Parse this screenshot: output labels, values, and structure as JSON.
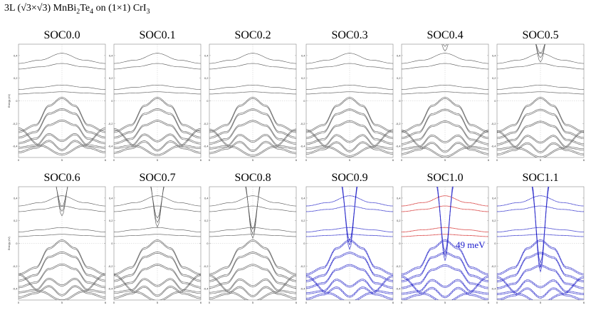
{
  "figure": {
    "title_prefix": "3L (√3×√3) MnBi",
    "title_sub1": "2",
    "title_mid": "Te",
    "title_sub2": "4",
    "title_suffix": " on (1×1) CrI",
    "title_sub3": "3"
  },
  "colors": {
    "plain_band": "#555555",
    "soc_band": "#2323c8",
    "highlight_band": "#d22020",
    "frame": "#888888",
    "annotation": "#1a1acc"
  },
  "chart_data": {
    "type": "line",
    "ylabel": "Energy (eV)",
    "ylim": [
      -0.5,
      0.5
    ],
    "xlim": [
      0,
      1
    ],
    "x_ticks": [
      "0",
      "5",
      "6"
    ],
    "y_ticks": [
      {
        "value": 0.4,
        "label": "0,4"
      },
      {
        "value": 0.2,
        "label": "0,2"
      },
      {
        "value": 0,
        "label": "0"
      },
      {
        "value": -0.2,
        "label": "-0,2"
      },
      {
        "value": -0.4,
        "label": "-0,4"
      }
    ],
    "panels": [
      {
        "title": "SOC0.0",
        "soc": 0.0,
        "style": "plain"
      },
      {
        "title": "SOC0.1",
        "soc": 0.1,
        "style": "plain"
      },
      {
        "title": "SOC0.2",
        "soc": 0.2,
        "style": "plain"
      },
      {
        "title": "SOC0.3",
        "soc": 0.3,
        "style": "plain"
      },
      {
        "title": "SOC0.4",
        "soc": 0.4,
        "style": "plain"
      },
      {
        "title": "SOC0.5",
        "soc": 0.5,
        "style": "plain"
      },
      {
        "title": "SOC0.6",
        "soc": 0.6,
        "style": "plain"
      },
      {
        "title": "SOC0.7",
        "soc": 0.7,
        "style": "plain"
      },
      {
        "title": "SOC0.8",
        "soc": 0.8,
        "style": "plain"
      },
      {
        "title": "SOC0.9",
        "soc": 0.9,
        "style": "soc"
      },
      {
        "title": "SOC1.0",
        "soc": 1.0,
        "style": "soc_highlight",
        "annotation": "49 meV"
      },
      {
        "title": "SOC1.1",
        "soc": 1.1,
        "style": "soc"
      }
    ],
    "conduction_bands": [
      {
        "name": "",
        "x": [
          0,
          0.25,
          0.5,
          0.75,
          1
        ],
        "y": [
          0.33,
          0.36,
          0.42,
          0.36,
          0.33
        ]
      },
      {
        "name": "",
        "x": [
          0,
          0.25,
          0.5,
          0.75,
          1
        ],
        "y": [
          0.28,
          0.3,
          0.33,
          0.3,
          0.28
        ]
      },
      {
        "name": "",
        "x": [
          0,
          0.25,
          0.5,
          0.75,
          1
        ],
        "y": [
          0.1,
          0.12,
          0.14,
          0.12,
          0.1
        ]
      },
      {
        "name": "",
        "x": [
          0,
          0.25,
          0.5,
          0.75,
          1
        ],
        "y": [
          0.06,
          0.07,
          0.08,
          0.07,
          0.06
        ]
      }
    ],
    "valence_bands": [
      {
        "name": "",
        "x": [
          0,
          0.2,
          0.35,
          0.5,
          0.65,
          0.8,
          1
        ],
        "y": [
          -0.28,
          -0.22,
          -0.05,
          0.02,
          -0.05,
          -0.22,
          -0.28
        ]
      },
      {
        "name": "",
        "x": [
          0,
          0.2,
          0.35,
          0.5,
          0.65,
          0.8,
          1
        ],
        "y": [
          -0.33,
          -0.28,
          -0.12,
          -0.08,
          -0.12,
          -0.28,
          -0.33
        ]
      },
      {
        "name": "",
        "x": [
          0,
          0.2,
          0.35,
          0.5,
          0.65,
          0.8,
          1
        ],
        "y": [
          -0.38,
          -0.34,
          -0.22,
          -0.18,
          -0.22,
          -0.34,
          -0.38
        ]
      },
      {
        "name": "",
        "x": [
          0,
          0.2,
          0.35,
          0.5,
          0.65,
          0.8,
          1
        ],
        "y": [
          -0.42,
          -0.4,
          -0.3,
          -0.36,
          -0.3,
          -0.4,
          -0.42
        ]
      },
      {
        "name": "",
        "x": [
          0,
          0.2,
          0.35,
          0.5,
          0.65,
          0.8,
          1
        ],
        "y": [
          -0.46,
          -0.42,
          -0.36,
          -0.44,
          -0.36,
          -0.42,
          -0.46
        ]
      },
      {
        "name": "",
        "x": [
          0,
          0.25,
          0.5,
          0.75,
          1
        ],
        "y": [
          -0.25,
          -0.4,
          -0.48,
          -0.4,
          -0.25
        ]
      }
    ]
  }
}
